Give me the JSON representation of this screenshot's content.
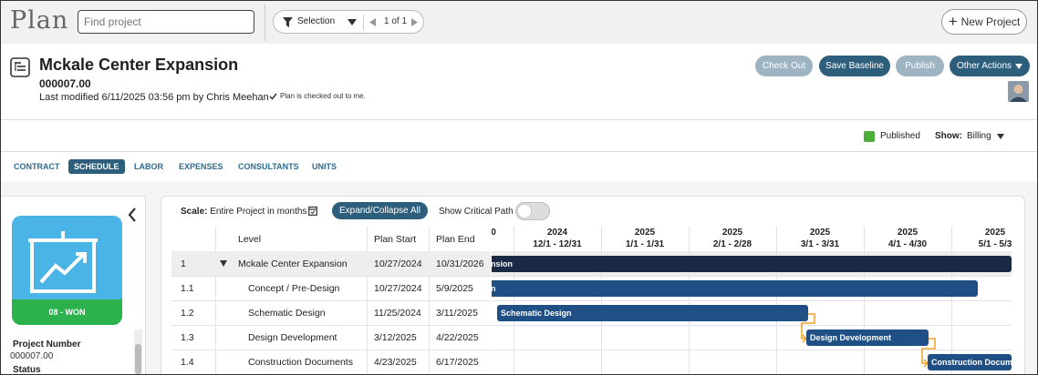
{
  "app": {
    "logo": "Plan"
  },
  "search": {
    "placeholder": "Find project",
    "value": "Find project"
  },
  "selector": {
    "label": "Selection",
    "page": "1 of 1"
  },
  "toolbar": {
    "new_project": "New Project"
  },
  "project": {
    "title": "Mckale Center Expansion",
    "number": "000007.00",
    "last_modified": "Last modified 6/11/2025 03:56 pm by Chris Meehan",
    "checkout_note": "Plan is checked out to me."
  },
  "actions": {
    "check_out": "Check Out",
    "save_baseline": "Save Baseline",
    "publish": "Publish",
    "other_actions": "Other Actions"
  },
  "state": {
    "published": "Published",
    "show_label": "Show:",
    "show_value": "Billing"
  },
  "tabs": [
    {
      "label": "CONTRACT",
      "active": false
    },
    {
      "label": "SCHEDULE",
      "active": true
    },
    {
      "label": "LABOR",
      "active": false
    },
    {
      "label": "EXPENSES",
      "active": false
    },
    {
      "label": "CONSULTANTS",
      "active": false
    },
    {
      "label": "UNITS",
      "active": false
    }
  ],
  "sidebar": {
    "status_label": "08 - WON",
    "project_number_label": "Project Number",
    "project_number_value": "000007.00",
    "status_field_label": "Status"
  },
  "schedule": {
    "scale_label": "Scale:",
    "scale_value": "Entire Project in months",
    "expand_collapse": "Expand/Collapse All",
    "critical_path": "Show Critical Path",
    "critical_path_on": false,
    "columns": {
      "level": "Level",
      "plan_start": "Plan Start",
      "plan_end": "Plan End"
    },
    "rows": [
      {
        "num": "1",
        "name": "Mckale Center Expansion",
        "start": "10/27/2024",
        "end": "10/31/2026",
        "expanded": true
      },
      {
        "num": "1.1",
        "name": "Concept / Pre-Design",
        "start": "10/27/2024",
        "end": "5/9/2025"
      },
      {
        "num": "1.2",
        "name": "Schematic Design",
        "start": "11/25/2024",
        "end": "3/11/2025"
      },
      {
        "num": "1.3",
        "name": "Design Development",
        "start": "3/12/2025",
        "end": "4/22/2025"
      },
      {
        "num": "1.4",
        "name": "Construction Documents",
        "start": "4/23/2025",
        "end": "6/17/2025"
      }
    ],
    "timeline": [
      {
        "year": "",
        "range": "0"
      },
      {
        "year": "2024",
        "range": "12/1 - 12/31"
      },
      {
        "year": "2025",
        "range": "1/1 - 1/31"
      },
      {
        "year": "2025",
        "range": "2/1 - 2/28"
      },
      {
        "year": "2025",
        "range": "3/1 - 3/31"
      },
      {
        "year": "2025",
        "range": "4/1 - 4/30"
      },
      {
        "year": "2025",
        "range": "5/1 - 5/3"
      }
    ],
    "bars": [
      {
        "label": "nsion"
      },
      {
        "label": "n"
      },
      {
        "label": "Schematic Design"
      },
      {
        "label": "Design Development"
      },
      {
        "label": "Construction Docum"
      }
    ]
  },
  "colors": {
    "accent": "#2d5f7c",
    "link": "#2c6c92",
    "bar_top": "#1a2a45",
    "bar_sub": "#1f4f85",
    "status_blue": "#4bb4e6",
    "status_green": "#2bb24c",
    "published_green": "#4caf3a",
    "dependency": "#f0a020"
  },
  "icons": [
    "filter-icon",
    "chevron-down-icon",
    "prev-icon",
    "next-icon",
    "plus-icon",
    "plan-icon",
    "check-icon",
    "calendar-icon",
    "chart-board-icon",
    "collapse-icon",
    "expand-triangle-icon"
  ]
}
